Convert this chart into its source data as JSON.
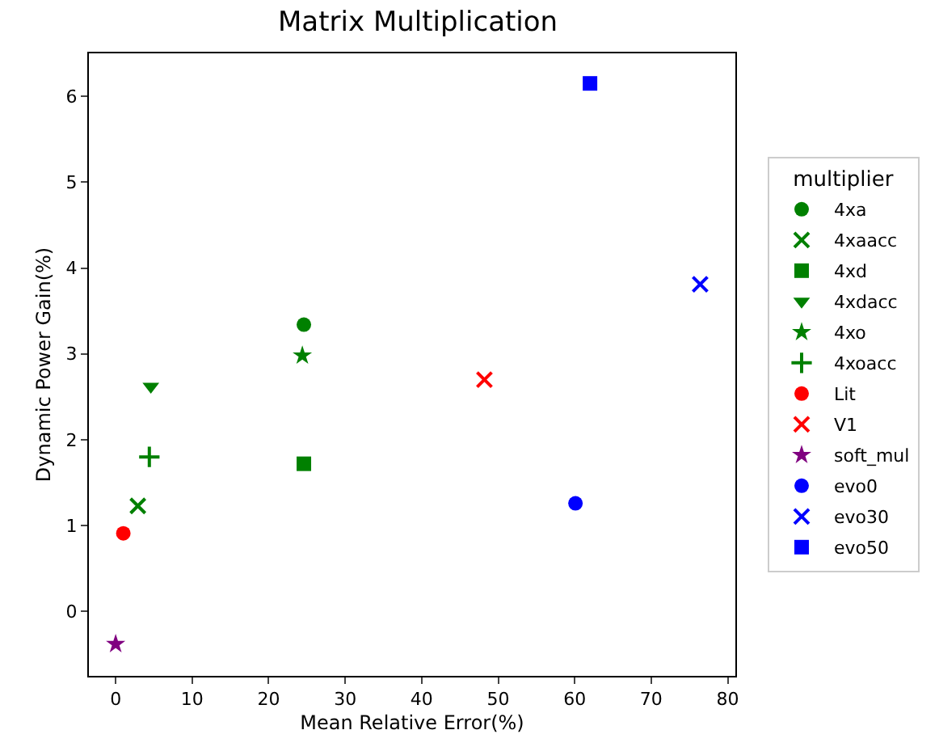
{
  "chart_data": {
    "type": "scatter",
    "title": "Matrix Multiplication",
    "xlabel": "Mean Relative Error(%)",
    "ylabel": "Dynamic Power Gain(%)",
    "legend_title": "multiplier",
    "legend": "right",
    "grid": false,
    "xlim": [
      -3.5,
      81
    ],
    "xticks": [
      0,
      10,
      20,
      30,
      40,
      50,
      60,
      70,
      80
    ],
    "ylim": [
      -0.75,
      6.5
    ],
    "yticks": [
      0,
      1,
      2,
      3,
      4,
      5,
      6
    ],
    "series": [
      {
        "name": "4xa",
        "color": "#008000",
        "marker": "circle",
        "x": [
          24.6
        ],
        "values": [
          3.34
        ]
      },
      {
        "name": "4xaacc",
        "color": "#008000",
        "marker": "x",
        "x": [
          2.9
        ],
        "values": [
          1.23
        ]
      },
      {
        "name": "4xd",
        "color": "#008000",
        "marker": "square",
        "x": [
          24.6
        ],
        "values": [
          1.72
        ]
      },
      {
        "name": "4xdacc",
        "color": "#008000",
        "marker": "triangle-down",
        "x": [
          4.6
        ],
        "values": [
          2.62
        ]
      },
      {
        "name": "4xo",
        "color": "#008000",
        "marker": "star",
        "x": [
          24.4
        ],
        "values": [
          2.98
        ]
      },
      {
        "name": "4xoacc",
        "color": "#008000",
        "marker": "cross",
        "x": [
          4.4
        ],
        "values": [
          1.8
        ]
      },
      {
        "name": "Lit",
        "color": "#ff0000",
        "marker": "circle",
        "x": [
          1.0
        ],
        "values": [
          0.91
        ]
      },
      {
        "name": "V1",
        "color": "#ff0000",
        "marker": "x",
        "x": [
          48.2
        ],
        "values": [
          2.7
        ]
      },
      {
        "name": "soft_mul",
        "color": "#800080",
        "marker": "star",
        "x": [
          0
        ],
        "values": [
          -0.38
        ]
      },
      {
        "name": "evo0",
        "color": "#0000ff",
        "marker": "circle",
        "x": [
          60.1
        ],
        "values": [
          1.26
        ]
      },
      {
        "name": "evo30",
        "color": "#0000ff",
        "marker": "x",
        "x": [
          76.4
        ],
        "values": [
          3.81
        ]
      },
      {
        "name": "evo50",
        "color": "#0000ff",
        "marker": "square",
        "x": [
          62.0
        ],
        "values": [
          6.15
        ]
      }
    ]
  }
}
